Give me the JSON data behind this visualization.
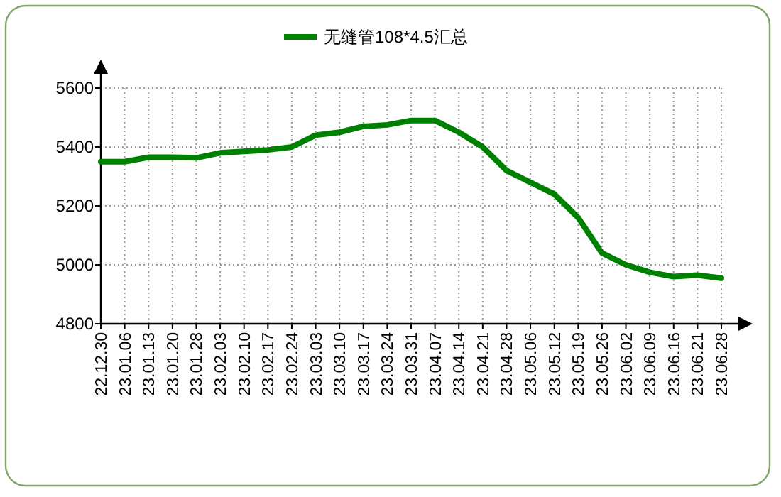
{
  "chart_data": {
    "type": "line",
    "categories": [
      "22.12.30",
      "23.01.06",
      "23.01.13",
      "23.01.20",
      "23.01.28",
      "23.02.03",
      "23.02.10",
      "23.02.17",
      "23.02.24",
      "23.03.03",
      "23.03.10",
      "23.03.17",
      "23.03.24",
      "23.03.31",
      "23.04.07",
      "23.04.14",
      "23.04.21",
      "23.04.28",
      "23.05.06",
      "23.05.12",
      "23.05.19",
      "23.05.26",
      "23.06.02",
      "23.06.09",
      "23.06.16",
      "23.06.21",
      "23.06.28"
    ],
    "series": [
      {
        "name": "无缝管108*4.5汇总",
        "color": "#008000",
        "values": [
          5350,
          5350,
          5365,
          5365,
          5363,
          5380,
          5385,
          5390,
          5400,
          5440,
          5450,
          5470,
          5475,
          5490,
          5490,
          5450,
          5400,
          5320,
          5280,
          5240,
          5160,
          5040,
          5000,
          4975,
          4960,
          4965,
          4955
        ]
      }
    ],
    "ylim": [
      4800,
      5600
    ],
    "yticks": [
      4800,
      5000,
      5200,
      5400,
      5600
    ],
    "grid": true,
    "legend": "top",
    "marker": "none",
    "line_style": "solid"
  }
}
